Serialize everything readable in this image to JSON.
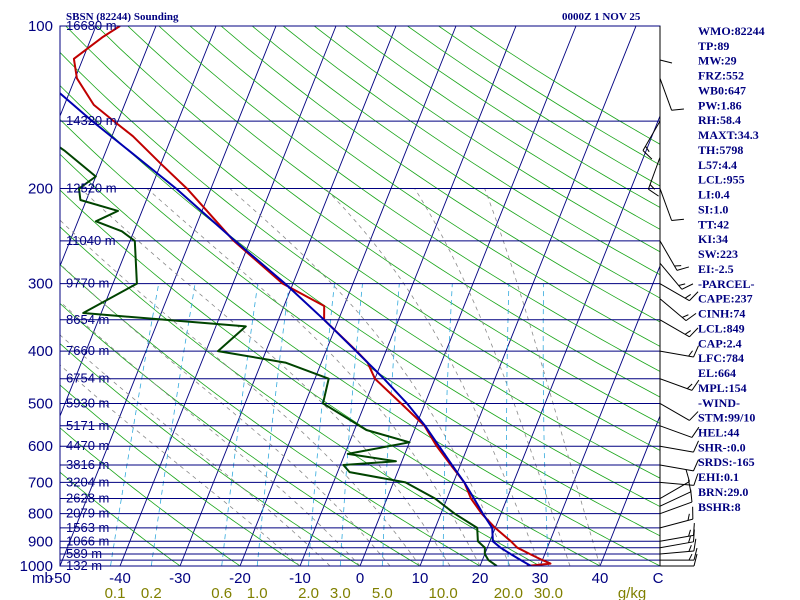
{
  "colors": {
    "background": "#ffffff",
    "axis": "#000080",
    "isobar": "#000080",
    "dry_adiabat": "#1aa51a",
    "moist_adiabat": "#8a8a8a",
    "mixing_ratio": "#33aadd",
    "temperature": "#c00000",
    "dewpoint": "#004400",
    "parcel": "#0000b0",
    "wind": "#000000",
    "mixing_ratio_label": "#808000"
  },
  "header": {
    "station": "SBSN (82244) Sounding",
    "time": "0000Z  1 NOV 25"
  },
  "chart_data": {
    "type": "line",
    "title": "SBSN (82244) Sounding",
    "subtitle": "0000Z  1 NOV 25",
    "diagram": "skew-T log-P",
    "x_axis_label": "",
    "y_axis_label": "mb",
    "xlim": [
      -50,
      50
    ],
    "ylim": [
      1000,
      100
    ],
    "temperature_ticks": [
      "mb",
      "-50",
      "-40",
      "-30",
      "-20",
      "-10",
      "0",
      "10",
      "20",
      "30",
      "40",
      "C"
    ],
    "temperature_tick_values": [
      -50,
      -40,
      -30,
      -20,
      -10,
      0,
      10,
      20,
      30,
      40
    ],
    "pressure_ticks": [
      {
        "p": 100,
        "label": "100"
      },
      {
        "p": 200,
        "label": "200"
      },
      {
        "p": 300,
        "label": "300"
      },
      {
        "p": 400,
        "label": "400"
      },
      {
        "p": 500,
        "label": "500"
      },
      {
        "p": 600,
        "label": "600"
      },
      {
        "p": 700,
        "label": "700"
      },
      {
        "p": 800,
        "label": "800"
      },
      {
        "p": 900,
        "label": "900"
      },
      {
        "p": 1000,
        "label": "1000"
      }
    ],
    "isobars_mb": [
      100,
      150,
      200,
      250,
      300,
      350,
      400,
      450,
      500,
      550,
      600,
      650,
      700,
      750,
      800,
      850,
      900,
      925,
      950,
      975,
      1000
    ],
    "height_labels": [
      {
        "p": 100,
        "label": "16680 m"
      },
      {
        "p": 150,
        "label": "14320 m"
      },
      {
        "p": 200,
        "label": "12520 m"
      },
      {
        "p": 250,
        "label": "11040 m"
      },
      {
        "p": 300,
        "label": "9770 m"
      },
      {
        "p": 350,
        "label": "8654 m"
      },
      {
        "p": 400,
        "label": "7660 m"
      },
      {
        "p": 450,
        "label": "6754 m"
      },
      {
        "p": 500,
        "label": "5930 m"
      },
      {
        "p": 550,
        "label": "5171 m"
      },
      {
        "p": 600,
        "label": "4470 m"
      },
      {
        "p": 650,
        "label": "3816 m"
      },
      {
        "p": 700,
        "label": "3204 m"
      },
      {
        "p": 750,
        "label": "2628 m"
      },
      {
        "p": 800,
        "label": "2079 m"
      },
      {
        "p": 850,
        "label": "1563 m"
      },
      {
        "p": 900,
        "label": "1066 m"
      },
      {
        "p": 950,
        "label": "589 m"
      },
      {
        "p": 1000,
        "label": "132 m"
      }
    ],
    "mixing_ratio_labels": [
      "0.1",
      "0.2",
      "0.6",
      "1.0",
      "2.0",
      "3.0",
      "5.0",
      "10.0",
      "20.0",
      "30.0",
      "g/kg"
    ],
    "mixing_ratio_values": [
      0.1,
      0.2,
      0.6,
      1.0,
      2.0,
      3.0,
      5.0,
      10.0,
      20.0,
      30.0
    ],
    "series": [
      {
        "name": "Temperature",
        "color": "#c00000",
        "points": [
          {
            "p": 1000,
            "t": 27.8
          },
          {
            "p": 990,
            "t": 31.6
          },
          {
            "p": 975,
            "t": 30.0
          },
          {
            "p": 950,
            "t": 27.5
          },
          {
            "p": 925,
            "t": 25.0
          },
          {
            "p": 900,
            "t": 23.5
          },
          {
            "p": 850,
            "t": 20.0
          },
          {
            "p": 800,
            "t": 16.8
          },
          {
            "p": 750,
            "t": 14.0
          },
          {
            "p": 700,
            "t": 11.8
          },
          {
            "p": 650,
            "t": 8.4
          },
          {
            "p": 600,
            "t": 4.8
          },
          {
            "p": 550,
            "t": 1.4
          },
          {
            "p": 500,
            "t": -4.0
          },
          {
            "p": 450,
            "t": -10.0
          },
          {
            "p": 420,
            "t": -12.3
          },
          {
            "p": 400,
            "t": -14.9
          },
          {
            "p": 350,
            "t": -22.4
          },
          {
            "p": 330,
            "t": -23.3
          },
          {
            "p": 300,
            "t": -31.7
          },
          {
            "p": 250,
            "t": -42.7
          },
          {
            "p": 200,
            "t": -54.0
          },
          {
            "p": 180,
            "t": -60.0
          },
          {
            "p": 160,
            "t": -66.5
          },
          {
            "p": 150,
            "t": -70.7
          },
          {
            "p": 140,
            "t": -75.1
          },
          {
            "p": 125,
            "t": -79.7
          },
          {
            "p": 115,
            "t": -81.5
          },
          {
            "p": 105,
            "t": -78.2
          },
          {
            "p": 100,
            "t": -76.0
          }
        ]
      },
      {
        "name": "Dewpoint",
        "color": "#004400",
        "points": [
          {
            "p": 1000,
            "t": 22.8
          },
          {
            "p": 975,
            "t": 21.0
          },
          {
            "p": 950,
            "t": 20.0
          },
          {
            "p": 925,
            "t": 19.6
          },
          {
            "p": 900,
            "t": 18.0
          },
          {
            "p": 850,
            "t": 17.0
          },
          {
            "p": 800,
            "t": 12.3
          },
          {
            "p": 750,
            "t": 8.0
          },
          {
            "p": 700,
            "t": 2.0
          },
          {
            "p": 670,
            "t": -8.0
          },
          {
            "p": 650,
            "t": -9.5
          },
          {
            "p": 640,
            "t": -1.0
          },
          {
            "p": 620,
            "t": -9.5
          },
          {
            "p": 590,
            "t": 0.0
          },
          {
            "p": 560,
            "t": -8.0
          },
          {
            "p": 500,
            "t": -17.0
          },
          {
            "p": 450,
            "t": -17.7
          },
          {
            "p": 420,
            "t": -26.0
          },
          {
            "p": 400,
            "t": -38.0
          },
          {
            "p": 360,
            "t": -35.0
          },
          {
            "p": 340,
            "t": -63.0
          },
          {
            "p": 300,
            "t": -56.0
          },
          {
            "p": 250,
            "t": -59.2
          },
          {
            "p": 240,
            "t": -62.0
          },
          {
            "p": 230,
            "t": -67.0
          },
          {
            "p": 220,
            "t": -64.0
          },
          {
            "p": 210,
            "t": -71.0
          },
          {
            "p": 200,
            "t": -72.0
          },
          {
            "p": 190,
            "t": -70.0
          },
          {
            "p": 170,
            "t": -77.0
          },
          {
            "p": 150,
            "t": -86.0
          },
          {
            "p": 120,
            "t": -94.0
          },
          {
            "p": 100,
            "t": -97.0
          }
        ]
      },
      {
        "name": "Parcel",
        "color": "#0000b0",
        "points": [
          {
            "p": 1000,
            "t": 28.5
          },
          {
            "p": 975,
            "t": 26.4
          },
          {
            "p": 950,
            "t": 24.3
          },
          {
            "p": 925,
            "t": 22.2
          },
          {
            "p": 900,
            "t": 20.5
          },
          {
            "p": 850,
            "t": 19.5
          },
          {
            "p": 800,
            "t": 17.0
          },
          {
            "p": 750,
            "t": 14.5
          },
          {
            "p": 700,
            "t": 11.8
          },
          {
            "p": 650,
            "t": 8.6
          },
          {
            "p": 600,
            "t": 5.2
          },
          {
            "p": 550,
            "t": 1.5
          },
          {
            "p": 500,
            "t": -3.0
          },
          {
            "p": 450,
            "t": -8.5
          },
          {
            "p": 400,
            "t": -15.0
          },
          {
            "p": 350,
            "t": -22.4
          },
          {
            "p": 300,
            "t": -31.3
          },
          {
            "p": 250,
            "t": -42.5
          },
          {
            "p": 200,
            "t": -55.8
          },
          {
            "p": 150,
            "t": -74.3
          },
          {
            "p": 100,
            "t": -99.0
          }
        ]
      }
    ],
    "wind_barbs": [
      {
        "p": 1000,
        "dir": 90,
        "spd": 10
      },
      {
        "p": 975,
        "dir": 90,
        "spd": 15
      },
      {
        "p": 950,
        "dir": 85,
        "spd": 15
      },
      {
        "p": 925,
        "dir": 80,
        "spd": 15
      },
      {
        "p": 900,
        "dir": 80,
        "spd": 15
      },
      {
        "p": 850,
        "dir": 75,
        "spd": 15
      },
      {
        "p": 800,
        "dir": 70,
        "spd": 10
      },
      {
        "p": 775,
        "dir": 65,
        "spd": 10
      },
      {
        "p": 750,
        "dir": 60,
        "spd": 10
      },
      {
        "p": 700,
        "dir": 95,
        "spd": 10
      },
      {
        "p": 650,
        "dir": 100,
        "spd": 10
      },
      {
        "p": 600,
        "dir": 100,
        "spd": 10
      },
      {
        "p": 550,
        "dir": 110,
        "spd": 10
      },
      {
        "p": 500,
        "dir": 120,
        "spd": 10
      },
      {
        "p": 450,
        "dir": 110,
        "spd": 15
      },
      {
        "p": 400,
        "dir": 100,
        "spd": 15
      },
      {
        "p": 350,
        "dir": 120,
        "spd": 15
      },
      {
        "p": 320,
        "dir": 130,
        "spd": 15
      },
      {
        "p": 300,
        "dir": 120,
        "spd": 15
      },
      {
        "p": 275,
        "dir": 140,
        "spd": 15
      },
      {
        "p": 250,
        "dir": 150,
        "spd": 15
      },
      {
        "p": 200,
        "dir": 160,
        "spd": 10
      },
      {
        "p": 175,
        "dir": 200,
        "spd": 15
      },
      {
        "p": 150,
        "dir": 210,
        "spd": 15
      },
      {
        "p": 125,
        "dir": 160,
        "spd": 10
      },
      {
        "p": 100,
        "dir": 180,
        "spd": 10
      }
    ]
  },
  "indices": [
    "WMO:82244",
    "TP:89",
    "MW:29",
    "FRZ:552",
    "WB0:647",
    "PW:1.86",
    "RH:58.4",
    "MAXT:34.3",
    "TH:5798",
    "L57:4.4",
    "LCL:955",
    "LI:0.4",
    "SI:1.0",
    "TT:42",
    "KI:34",
    "SW:223",
    "EI:-2.5",
    "-PARCEL-",
    "CAPE:237",
    "CINH:74",
    "LCL:849",
    "CAP:2.4",
    "LFC:784",
    "EL:664",
    "MPL:154",
    "-WIND-",
    "STM:99/10",
    "HEL:44",
    "SHR-:0.0",
    "SRDS:-165",
    "EHI:0.1",
    "BRN:29.0",
    "BSHR:8"
  ]
}
